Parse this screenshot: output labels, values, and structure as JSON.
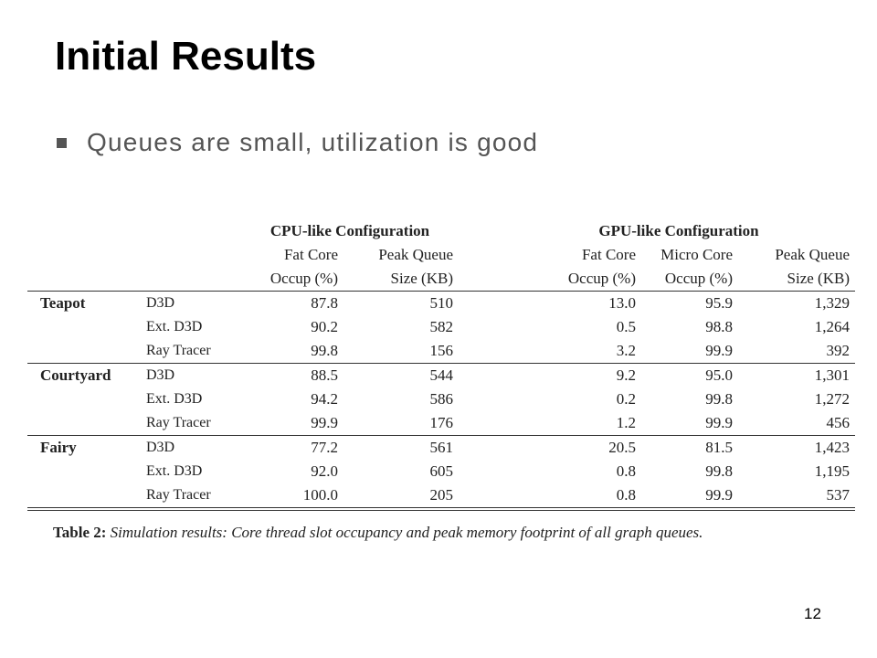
{
  "slide": {
    "title": "Initial Results",
    "bullet": "Queues are small, utilization is good",
    "page_number": "12"
  },
  "table": {
    "group_headers": {
      "cpu": "CPU-like Configuration",
      "gpu": "GPU-like Configuration"
    },
    "column_headers": [
      {
        "line1": "Fat Core",
        "line2": "Occup (%)"
      },
      {
        "line1": "Peak Queue",
        "line2": "Size (KB)"
      },
      {
        "line1": "Fat Core",
        "line2": "Occup (%)"
      },
      {
        "line1": "Micro Core",
        "line2": "Occup (%)"
      },
      {
        "line1": "Peak Queue",
        "line2": "Size (KB)"
      }
    ],
    "rows": [
      {
        "scene": "Teapot",
        "method": "D3D",
        "values": [
          "87.8",
          "510",
          "13.0",
          "95.9",
          "1,329"
        ]
      },
      {
        "scene": "",
        "method": "Ext. D3D",
        "values": [
          "90.2",
          "582",
          "0.5",
          "98.8",
          "1,264"
        ]
      },
      {
        "scene": "",
        "method": "Ray Tracer",
        "values": [
          "99.8",
          "156",
          "3.2",
          "99.9",
          "392"
        ]
      },
      {
        "scene": "Courtyard",
        "method": "D3D",
        "values": [
          "88.5",
          "544",
          "9.2",
          "95.0",
          "1,301"
        ]
      },
      {
        "scene": "",
        "method": "Ext. D3D",
        "values": [
          "94.2",
          "586",
          "0.2",
          "99.8",
          "1,272"
        ]
      },
      {
        "scene": "",
        "method": "Ray Tracer",
        "values": [
          "99.9",
          "176",
          "1.2",
          "99.9",
          "456"
        ]
      },
      {
        "scene": "Fairy",
        "method": "D3D",
        "values": [
          "77.2",
          "561",
          "20.5",
          "81.5",
          "1,423"
        ]
      },
      {
        "scene": "",
        "method": "Ext. D3D",
        "values": [
          "92.0",
          "605",
          "0.8",
          "99.8",
          "1,195"
        ]
      },
      {
        "scene": "",
        "method": "Ray Tracer",
        "values": [
          "100.0",
          "205",
          "0.8",
          "99.9",
          "537"
        ]
      }
    ],
    "caption": {
      "label": "Table 2:",
      "text": "Simulation results: Core thread slot occupancy and peak memory footprint of all graph queues."
    }
  }
}
